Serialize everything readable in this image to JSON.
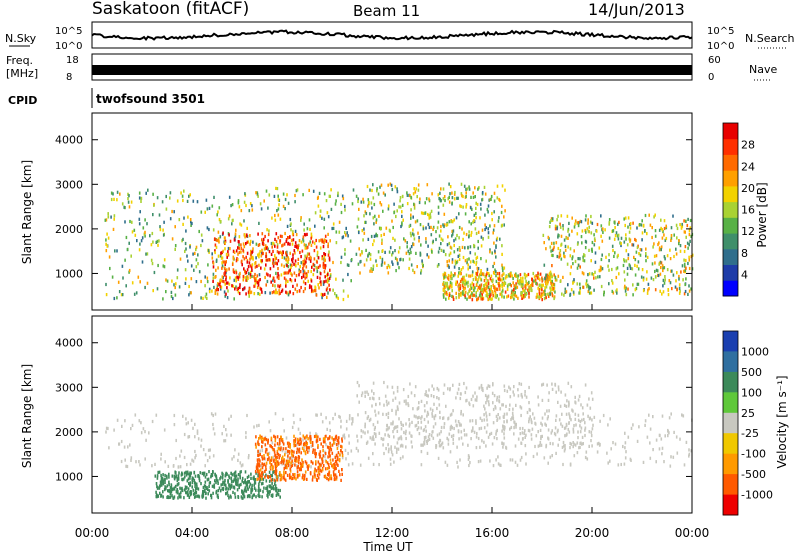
{
  "header": {
    "station": "Saskatoon (fitACF)",
    "beam": "Beam 11",
    "date": "14/Jun/2013"
  },
  "noise_panel": {
    "left_label": "N.Sky",
    "right_label": "N.Search",
    "left_ticks": [
      "10^5",
      "10^0"
    ],
    "right_ticks": [
      "10^5",
      "10^0"
    ]
  },
  "freq_panel": {
    "left_label_1": "Freq.",
    "left_label_2": "[MHz]",
    "right_label": "Nave",
    "left_ticks": [
      "18",
      "8"
    ],
    "right_ticks": [
      "60",
      "0"
    ]
  },
  "cpid": {
    "label": "CPID",
    "value": "twofsound 3501"
  },
  "chart_data": [
    {
      "type": "heatmap",
      "name": "power",
      "ylabel": "Slant Range [km]",
      "ylim": [
        180,
        4600
      ],
      "yticks": [
        "1000",
        "2000",
        "3000",
        "4000"
      ],
      "xlim": [
        0,
        24
      ],
      "colorbar": {
        "label": "Power [dB]",
        "ticks": [
          "28",
          "24",
          "20",
          "16",
          "12",
          "8",
          "4"
        ],
        "range": [
          0,
          32
        ],
        "colors": [
          "#0000ff",
          "#1e3ca8",
          "#2f6e8c",
          "#3f8f6a",
          "#58b146",
          "#a9d233",
          "#f2d200",
          "#ffa000",
          "#ff6a00",
          "#ff3000",
          "#e80000"
        ]
      },
      "bands": [
        {
          "t0": 0.5,
          "t1": 10.5,
          "r0": 400,
          "r1": 2900,
          "mean": 14
        },
        {
          "t0": 4.8,
          "t1": 9.5,
          "r0": 500,
          "r1": 1900,
          "mean": 26
        },
        {
          "t0": 10.5,
          "t1": 16.5,
          "r0": 1000,
          "r1": 3000,
          "mean": 15
        },
        {
          "t0": 14.0,
          "t1": 18.5,
          "r0": 400,
          "r1": 1000,
          "mean": 20
        },
        {
          "t0": 18.0,
          "t1": 24.0,
          "r0": 500,
          "r1": 2300,
          "mean": 16
        }
      ]
    },
    {
      "type": "heatmap",
      "name": "velocity",
      "ylabel": "Slant Range [km]",
      "ylim": [
        180,
        4600
      ],
      "yticks": [
        "1000",
        "2000",
        "3000",
        "4000"
      ],
      "xlim": [
        0,
        24
      ],
      "xticks": [
        "00:00",
        "04:00",
        "08:00",
        "12:00",
        "16:00",
        "20:00",
        "00:00"
      ],
      "xlabel": "Time UT",
      "colorbar": {
        "label": "Velocity [m s⁻¹]",
        "ticks": [
          "1000",
          "500",
          "100",
          "25",
          "-25",
          "-100",
          "-500",
          "-1000"
        ],
        "colors": [
          "#1a3fb0",
          "#2f6fa0",
          "#3c8a5a",
          "#5fc83a",
          "#c8c8c0",
          "#f0c800",
          "#ff9a00",
          "#ff5a00",
          "#ee0000"
        ]
      },
      "bands": [
        {
          "t0": 0.5,
          "t1": 24.0,
          "r0": 1200,
          "r1": 2400,
          "mean": 0
        },
        {
          "t0": 2.5,
          "t1": 7.5,
          "r0": 500,
          "r1": 1100,
          "mean": 150
        },
        {
          "t0": 6.5,
          "t1": 10.0,
          "r0": 900,
          "r1": 1900,
          "mean": -400
        },
        {
          "t0": 10.5,
          "t1": 20.0,
          "r0": 1600,
          "r1": 3100,
          "mean": 0
        }
      ]
    }
  ]
}
